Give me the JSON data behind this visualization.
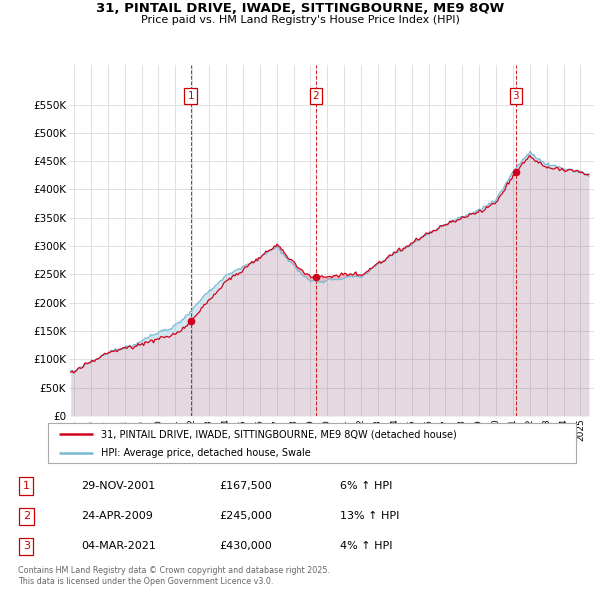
{
  "title": "31, PINTAIL DRIVE, IWADE, SITTINGBOURNE, ME9 8QW",
  "subtitle": "Price paid vs. HM Land Registry's House Price Index (HPI)",
  "ylim": [
    0,
    620000
  ],
  "yticks": [
    0,
    50000,
    100000,
    150000,
    200000,
    250000,
    300000,
    350000,
    400000,
    450000,
    500000,
    550000
  ],
  "xlim_start": 1994.7,
  "xlim_end": 2025.8,
  "legend_line1": "31, PINTAIL DRIVE, IWADE, SITTINGBOURNE, ME9 8QW (detached house)",
  "legend_line2": "HPI: Average price, detached house, Swale",
  "line_color_red": "#d0021b",
  "line_color_blue": "#7ab8d4",
  "purchase_dates": [
    2001.91,
    2009.32,
    2021.17
  ],
  "purchase_prices": [
    167500,
    245000,
    430000
  ],
  "purchase_labels": [
    "1",
    "2",
    "3"
  ],
  "table_data": [
    [
      "1",
      "29-NOV-2001",
      "£167,500",
      "6% ↑ HPI"
    ],
    [
      "2",
      "24-APR-2009",
      "£245,000",
      "13% ↑ HPI"
    ],
    [
      "3",
      "04-MAR-2021",
      "£430,000",
      "4% ↑ HPI"
    ]
  ],
  "footnote": "Contains HM Land Registry data © Crown copyright and database right 2025.\nThis data is licensed under the Open Government Licence v3.0.",
  "grid_color": "#e0e0e0"
}
